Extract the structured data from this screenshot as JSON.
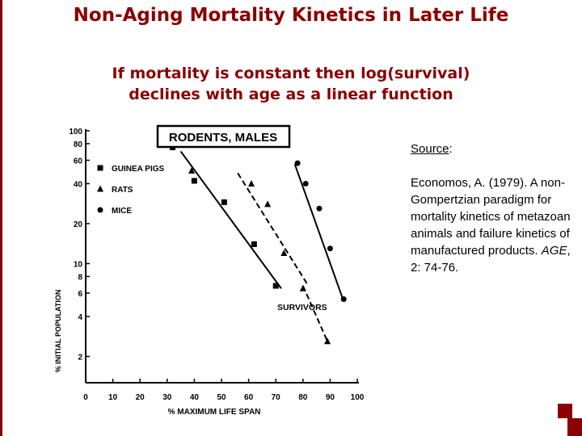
{
  "slide": {
    "title": "Non-Aging Mortality Kinetics in Later Life",
    "subtitle_lines": [
      "If mortality is constant then log(survival)",
      "declines with age as a linear function"
    ]
  },
  "source": {
    "heading": "Source",
    "heading_suffix": ":",
    "reference_text": "Economos, A. (1979). A non-Gompertzian paradigm for mortality kinetics of metazoan animals and failure kinetics of manufactured products.",
    "journal": "AGE",
    "citation_tail": ", 2: 74-76."
  },
  "colors": {
    "title": "#8b0000",
    "accent": "#8b0000",
    "ink": "#000000"
  },
  "chart_data": {
    "type": "scatter",
    "title": "RODENTS, MALES",
    "xlabel": "% MAXIMUM LIFE SPAN",
    "ylabel": "% INITIAL POPULATION",
    "annotation": "SURVIVORS",
    "x_scale": "linear",
    "y_scale": "log",
    "xlim": [
      0,
      100
    ],
    "ylim": [
      1.5,
      100
    ],
    "x_ticks": [
      "0",
      "10",
      "20",
      "30",
      "40",
      "50",
      "60",
      "70",
      "80",
      "90",
      "100"
    ],
    "y_ticks": [
      {
        "value": 100,
        "label": "100"
      },
      {
        "value": 80,
        "label": "80"
      },
      {
        "value": 60,
        "label": "60"
      },
      {
        "value": 40,
        "label": "40"
      },
      {
        "value": 20,
        "label": "20"
      },
      {
        "value": 10,
        "label": "10"
      },
      {
        "value": 8,
        "label": "8"
      },
      {
        "value": 6,
        "label": "6"
      },
      {
        "value": 4,
        "label": "4"
      },
      {
        "value": 2,
        "label": "2"
      }
    ],
    "grid": false,
    "legend_position": "top-left",
    "series": [
      {
        "name": "GUINEA PIGS",
        "marker": "square",
        "line": "solid",
        "points": [
          [
            32,
            75
          ],
          [
            40,
            42
          ],
          [
            51,
            29
          ],
          [
            62,
            14
          ],
          [
            70,
            6.8
          ]
        ]
      },
      {
        "name": "RATS",
        "marker": "triangle",
        "line": "dashed",
        "points": [
          [
            39,
            50
          ],
          [
            61,
            40
          ],
          [
            67,
            28
          ],
          [
            73,
            12
          ],
          [
            80,
            6.5
          ],
          [
            89,
            2.6
          ]
        ]
      },
      {
        "name": "MICE",
        "marker": "circle",
        "line": "solid",
        "points": [
          [
            78,
            57
          ],
          [
            81,
            40
          ],
          [
            86,
            26
          ],
          [
            90,
            13
          ],
          [
            95,
            5.4
          ]
        ]
      }
    ],
    "trend_lines": [
      {
        "series": "GUINEA PIGS",
        "style": "solid",
        "from": [
          35,
          70
        ],
        "to": [
          72,
          6.5
        ]
      },
      {
        "series": "RATS",
        "style": "dashed",
        "from": [
          56,
          48
        ],
        "to": [
          82,
          6.8
        ]
      },
      {
        "series": "RATS",
        "style": "dashed",
        "from": [
          80,
          6.8
        ],
        "to": [
          89,
          2.6
        ]
      },
      {
        "series": "MICE",
        "style": "solid",
        "from": [
          77,
          56
        ],
        "to": [
          95,
          5.2
        ]
      }
    ]
  }
}
